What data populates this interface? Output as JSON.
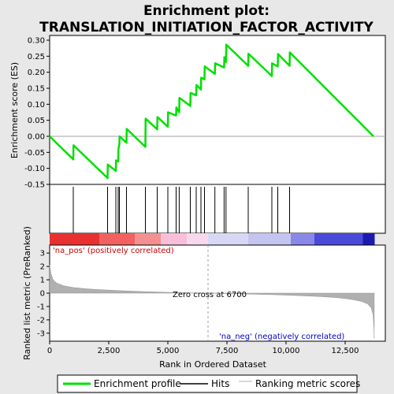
{
  "title_line1": "Enrichment plot:",
  "title_line2": "TRANSLATION_INITIATION_FACTOR_ACTIVITY",
  "colors": {
    "es_line": "#00e000",
    "hit": "#000000",
    "metric_fill": "#b0b0b0",
    "pos_label": "#cc0000",
    "neg_label": "#0000cc",
    "zero_cross": "#a0a0a0"
  },
  "chart_data": [
    {
      "type": "line",
      "name": "enrichment-score",
      "ylabel": "Enrichment score (ES)",
      "ylim": [
        -0.15,
        0.3
      ],
      "yticks": [
        "0.30",
        "0.25",
        "0.20",
        "0.15",
        "0.10",
        "0.05",
        "0.00",
        "-0.05",
        "-0.10",
        "-0.15"
      ],
      "ytick_values": [
        0.3,
        0.25,
        0.2,
        0.15,
        0.1,
        0.05,
        0.0,
        -0.05,
        -0.1,
        -0.15
      ],
      "xlim": [
        0,
        14200
      ],
      "series": [
        {
          "name": "Enrichment profile",
          "x": [
            0,
            1000,
            1010,
            2450,
            2460,
            2800,
            2810,
            2900,
            2910,
            2950,
            2960,
            3250,
            3260,
            4050,
            4060,
            4550,
            4560,
            5000,
            5010,
            5350,
            5360,
            5480,
            5490,
            5950,
            5960,
            6200,
            6210,
            6400,
            6410,
            6550,
            6560,
            6990,
            7000,
            7380,
            7390,
            7460,
            7470,
            8400,
            8410,
            9400,
            9410,
            9650,
            9660,
            10150,
            10160,
            13700
          ],
          "y": [
            0.0,
            -0.072,
            -0.028,
            -0.13,
            -0.088,
            -0.108,
            -0.075,
            -0.078,
            -0.04,
            -0.025,
            0.0,
            -0.02,
            0.023,
            -0.033,
            0.055,
            0.022,
            0.06,
            0.03,
            0.075,
            0.065,
            0.09,
            0.075,
            0.12,
            0.095,
            0.135,
            0.128,
            0.16,
            0.146,
            0.183,
            0.178,
            0.218,
            0.195,
            0.228,
            0.215,
            0.247,
            0.232,
            0.286,
            0.22,
            0.258,
            0.188,
            0.228,
            0.218,
            0.257,
            0.22,
            0.262,
            0.0
          ]
        }
      ]
    },
    {
      "type": "scatter",
      "name": "hits",
      "legend": "Hits",
      "x": [
        1000,
        2450,
        2800,
        2900,
        2950,
        3250,
        4050,
        4550,
        5000,
        5350,
        5480,
        5950,
        6200,
        6400,
        6550,
        6990,
        7380,
        7460,
        8400,
        9400,
        9650,
        10150
      ]
    },
    {
      "type": "heatmap",
      "name": "rank-color-bar",
      "segments": [
        {
          "x0": 0,
          "x1": 2100,
          "color": "#e83030"
        },
        {
          "x0": 2100,
          "x1": 3600,
          "color": "#f26060"
        },
        {
          "x0": 3600,
          "x1": 4700,
          "color": "#f59090"
        },
        {
          "x0": 4700,
          "x1": 5800,
          "color": "#f8c0d8"
        },
        {
          "x0": 5800,
          "x1": 6700,
          "color": "#f8d8ec"
        },
        {
          "x0": 6700,
          "x1": 8400,
          "color": "#d8d8f6"
        },
        {
          "x0": 8400,
          "x1": 10200,
          "color": "#c4c4f0"
        },
        {
          "x0": 10200,
          "x1": 11200,
          "color": "#8888e8"
        },
        {
          "x0": 11200,
          "x1": 13250,
          "color": "#4a4ad8"
        },
        {
          "x0": 13250,
          "x1": 13750,
          "color": "#1a1ab0"
        }
      ]
    },
    {
      "type": "area",
      "name": "ranked-list-metric",
      "ylabel": "Ranked list metric (PreRanked)",
      "xlabel": "Rank in Ordered Dataset",
      "legend": "Ranking metric scores",
      "ylim": [
        -3.6,
        3.6
      ],
      "yticks": [
        "3",
        "2",
        "1",
        "0",
        "-1",
        "-2",
        "-3"
      ],
      "ytick_values": [
        3,
        2,
        1,
        0,
        -1,
        -2,
        -3
      ],
      "xlim": [
        0,
        14200
      ],
      "xticks": [
        "0",
        "2,500",
        "5,000",
        "7,500",
        "10,000",
        "12,500"
      ],
      "xtick_values": [
        0,
        2500,
        5000,
        7500,
        10000,
        12500
      ],
      "x": [
        0,
        50,
        150,
        300,
        600,
        1000,
        1500,
        2000,
        3000,
        4000,
        5000,
        6000,
        6700,
        7500,
        8500,
        9500,
        10500,
        11500,
        12300,
        12800,
        13200,
        13450,
        13600,
        13680,
        13720,
        13730
      ],
      "y": [
        2.1,
        1.5,
        1.0,
        0.75,
        0.55,
        0.42,
        0.33,
        0.27,
        0.18,
        0.11,
        0.06,
        0.02,
        0.0,
        -0.03,
        -0.07,
        -0.12,
        -0.18,
        -0.26,
        -0.36,
        -0.48,
        -0.62,
        -0.8,
        -1.1,
        -1.6,
        -2.6,
        -3.4
      ],
      "annotations": {
        "pos": "'na_pos' (positively correlated)",
        "neg": "'na_neg' (negatively correlated)",
        "zero": "Zero cross at 6700"
      },
      "zero_cross": 6700
    }
  ],
  "legend": {
    "items": [
      "Enrichment profile",
      "Hits",
      "Ranking metric scores"
    ]
  }
}
